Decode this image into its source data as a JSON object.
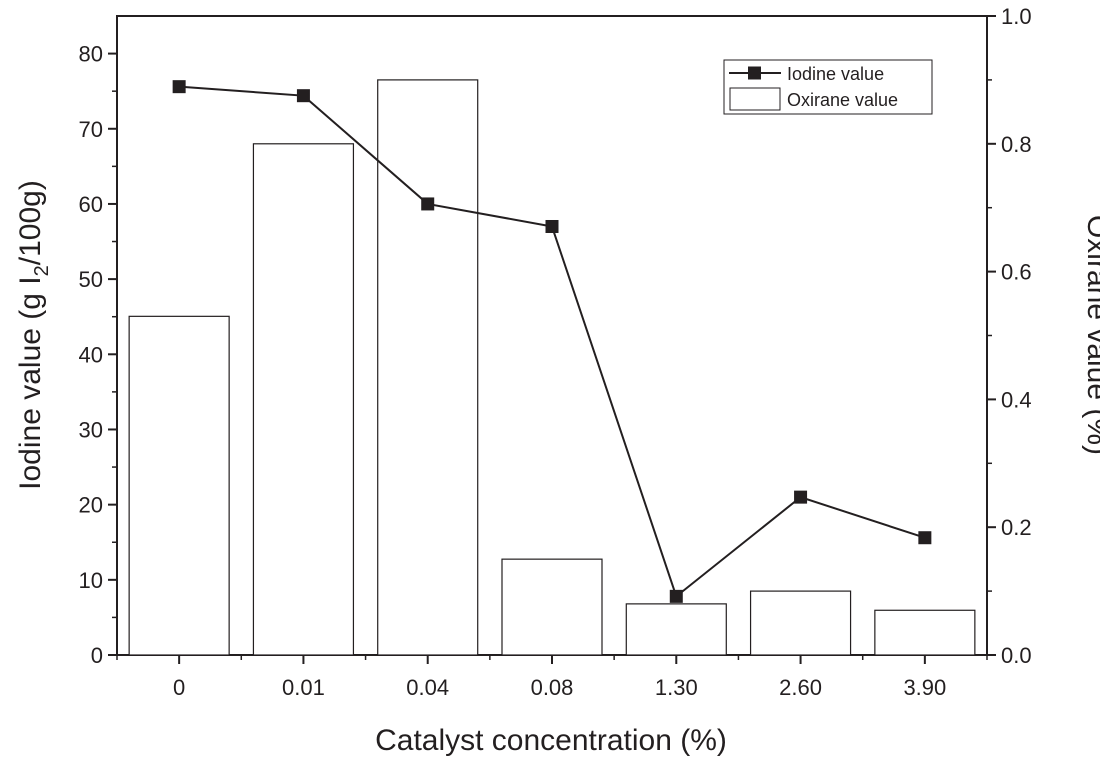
{
  "chart_data": {
    "type": "bar+line",
    "categories": [
      "0",
      "0.01",
      "0.04",
      "0.08",
      "1.30",
      "2.60",
      "3.90"
    ],
    "series": [
      {
        "name": "Iodine value",
        "kind": "line",
        "axis": "left",
        "marker": "square",
        "values": [
          75.6,
          74.4,
          60.0,
          57.0,
          7.8,
          21.0,
          15.6
        ]
      },
      {
        "name": "Oxirane value",
        "kind": "bar",
        "axis": "right",
        "values": [
          0.53,
          0.8,
          0.9,
          0.15,
          0.08,
          0.1,
          0.07
        ]
      }
    ],
    "xlabel": "Catalyst concentration (%)",
    "ylabel_left_parts": [
      "Iodine value (g I",
      "2",
      "/100g)"
    ],
    "ylabel_right": "Oxirane value (%)",
    "ylim_left": [
      0,
      85
    ],
    "ylim_right": [
      0,
      1.0
    ],
    "yticks_left": [
      "0",
      "10",
      "20",
      "30",
      "40",
      "50",
      "60",
      "70",
      "80"
    ],
    "yticks_right": [
      "0.0",
      "0.2",
      "0.4",
      "0.6",
      "0.8",
      "1.0"
    ],
    "legend_position": "top-right",
    "colors": {
      "ink": "#231f20",
      "bar_fill": "#ffffff",
      "marker": "#231f20"
    }
  }
}
